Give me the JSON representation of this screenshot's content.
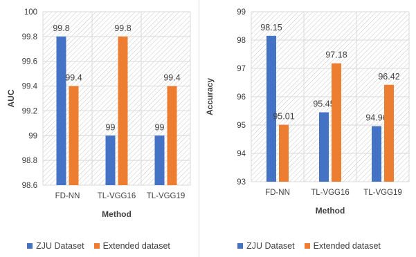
{
  "colors": {
    "zju": "#4472c4",
    "extended": "#ed7d31",
    "grid": "#d9d9d9",
    "hatch": "#c8c8c8"
  },
  "chart_data": [
    {
      "type": "bar",
      "categories": [
        "FD-NN",
        "TL-VGG16",
        "TL-VGG19"
      ],
      "series": [
        {
          "name": "ZJU Dataset",
          "values": [
            99.8,
            99,
            99
          ],
          "labels": [
            "99.8",
            "99",
            "99"
          ]
        },
        {
          "name": "Extended dataset",
          "values": [
            99.4,
            99.8,
            99.4
          ],
          "labels": [
            "99.4",
            "99.8",
            "99.4"
          ]
        }
      ],
      "xlabel": "Method",
      "ylabel": "AUC",
      "ylim": [
        98.6,
        100
      ],
      "yticks": [
        "98.6",
        "98.8",
        "99",
        "99.2",
        "99.4",
        "99.6",
        "99.8",
        "100"
      ],
      "grid": true,
      "legend_position": "bottom"
    },
    {
      "type": "bar",
      "categories": [
        "FD-NN",
        "TL-VGG16",
        "TL-VGG19"
      ],
      "series": [
        {
          "name": "ZJU Dataset",
          "values": [
            98.15,
            95.45,
            94.96
          ],
          "labels": [
            "98.15",
            "95.45",
            "94.96"
          ]
        },
        {
          "name": "Extended dataset",
          "values": [
            95.01,
            97.18,
            96.42
          ],
          "labels": [
            "95.01",
            "97.18",
            "96.42"
          ]
        }
      ],
      "xlabel": "Method",
      "ylabel": "Accuracy",
      "ylim": [
        93,
        99
      ],
      "yticks": [
        "93",
        "94",
        "95",
        "96",
        "97",
        "98",
        "99"
      ],
      "grid": true,
      "legend_position": "bottom"
    }
  ]
}
